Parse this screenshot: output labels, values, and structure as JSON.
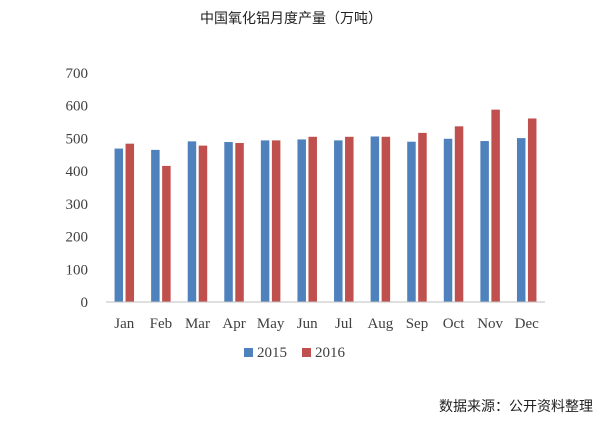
{
  "chart_data": {
    "type": "bar",
    "title": "中国氧化铝月度产量（万吨）",
    "categories": [
      "Jan",
      "Feb",
      "Mar",
      "Apr",
      "May",
      "Jun",
      "Jul",
      "Aug",
      "Sep",
      "Oct",
      "Nov",
      "Dec"
    ],
    "series": [
      {
        "name": "2015",
        "color": "#4f81bd",
        "values": [
          469,
          465,
          491,
          489,
          494,
          497,
          494,
          506,
          490,
          499,
          492,
          501
        ]
      },
      {
        "name": "2016",
        "color": "#c0504d",
        "values": [
          484,
          416,
          478,
          486,
          494,
          505,
          505,
          505,
          517,
          537,
          588,
          561
        ]
      }
    ],
    "ylim": [
      0,
      700
    ],
    "yticks": [
      0,
      100,
      200,
      300,
      400,
      500,
      600,
      700
    ],
    "grid": false,
    "legend_position": "bottom"
  },
  "source": "数据来源：公开资料整理"
}
